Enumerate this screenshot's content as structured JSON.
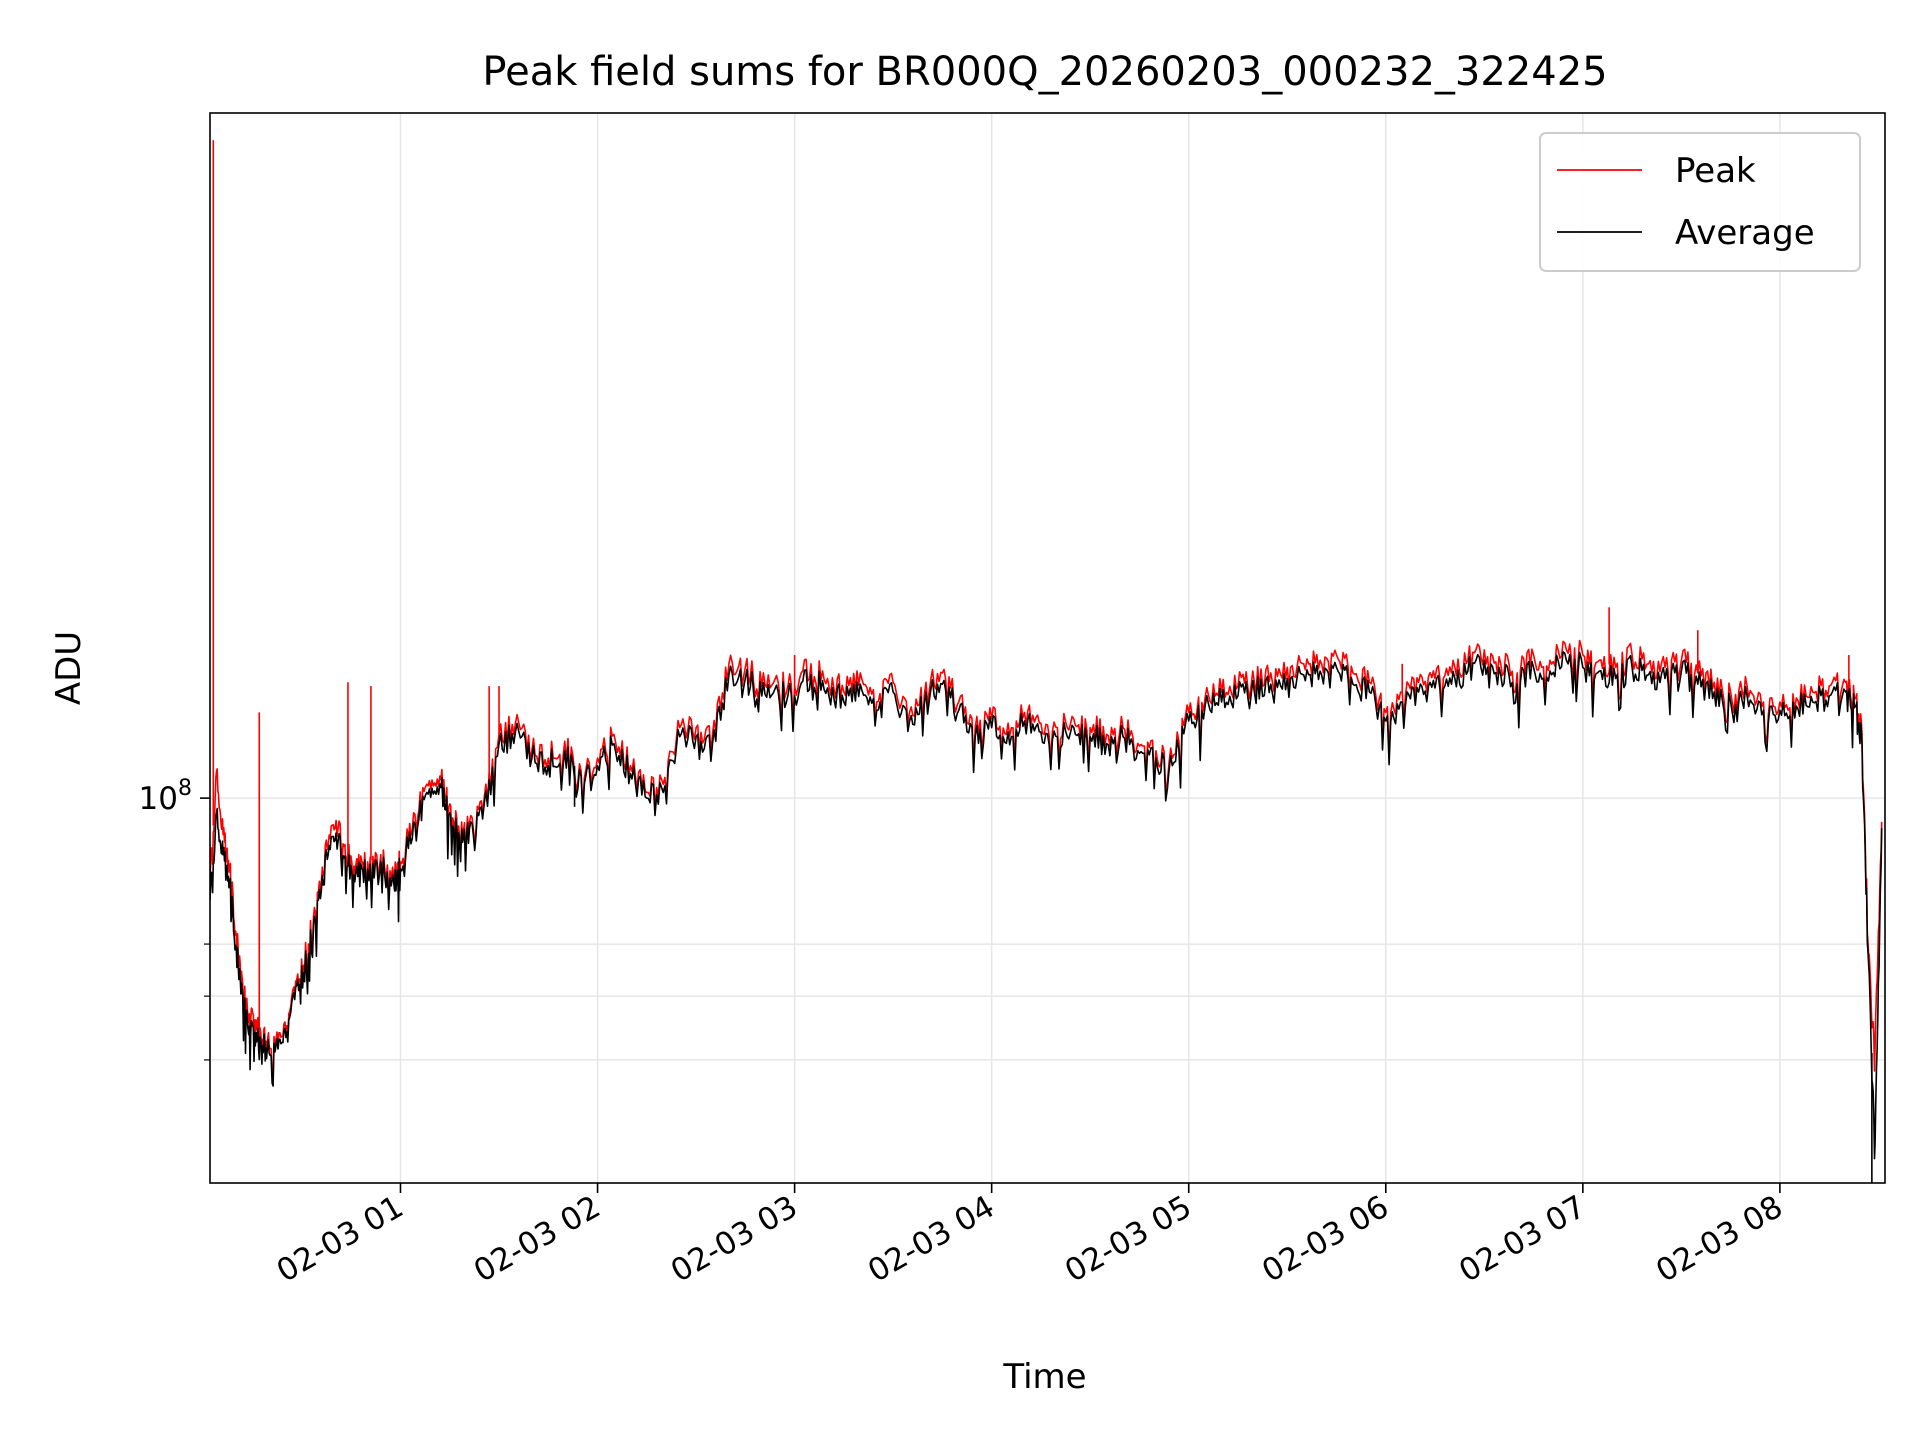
{
  "chart_data": {
    "type": "line",
    "title": "Peak field sums for BR000Q_20260203_000232_322425",
    "xlabel": "Time",
    "ylabel": "ADU",
    "x_axis_type": "time",
    "xlim": [
      "2026-02-03 00:02",
      "2026-02-03 08:32"
    ],
    "y_scale": "log",
    "ylim": [
      26000000,
      1100000000
    ],
    "grid": true,
    "legend_position": "top-right",
    "x_ticks": [
      {
        "time": "2026-02-03 01:00",
        "label": "02-03 01"
      },
      {
        "time": "2026-02-03 02:00",
        "label": "02-03 02"
      },
      {
        "time": "2026-02-03 03:00",
        "label": "02-03 03"
      },
      {
        "time": "2026-02-03 04:00",
        "label": "02-03 04"
      },
      {
        "time": "2026-02-03 05:00",
        "label": "02-03 05"
      },
      {
        "time": "2026-02-03 06:00",
        "label": "02-03 06"
      },
      {
        "time": "2026-02-03 07:00",
        "label": "02-03 07"
      },
      {
        "time": "2026-02-03 08:00",
        "label": "02-03 08"
      }
    ],
    "y_major_ticks": [
      {
        "value": 100000000,
        "base": "10",
        "exp": "8"
      }
    ],
    "y_minor_ticks": [
      40000000,
      50000000,
      60000000
    ],
    "x": [
      "2026-02-03 00:02",
      "2026-02-03 00:04",
      "2026-02-03 00:06",
      "2026-02-03 00:08",
      "2026-02-03 00:10",
      "2026-02-03 00:12",
      "2026-02-03 00:14",
      "2026-02-03 00:16",
      "2026-02-03 00:18",
      "2026-02-03 00:20",
      "2026-02-03 00:23",
      "2026-02-03 00:26",
      "2026-02-03 00:29",
      "2026-02-03 00:32",
      "2026-02-03 00:35",
      "2026-02-03 00:38",
      "2026-02-03 00:41",
      "2026-02-03 00:44",
      "2026-02-03 00:47",
      "2026-02-03 00:50",
      "2026-02-03 00:54",
      "2026-02-03 00:58",
      "2026-02-03 01:00",
      "2026-02-03 01:04",
      "2026-02-03 01:08",
      "2026-02-03 01:12",
      "2026-02-03 01:15",
      "2026-02-03 01:18",
      "2026-02-03 01:21",
      "2026-02-03 01:25",
      "2026-02-03 01:30",
      "2026-02-03 01:35",
      "2026-02-03 01:40",
      "2026-02-03 01:45",
      "2026-02-03 01:50",
      "2026-02-03 01:55",
      "2026-02-03 02:00",
      "2026-02-03 02:05",
      "2026-02-03 02:10",
      "2026-02-03 02:15",
      "2026-02-03 02:20",
      "2026-02-03 02:25",
      "2026-02-03 02:30",
      "2026-02-03 02:35",
      "2026-02-03 02:40",
      "2026-02-03 02:45",
      "2026-02-03 02:50",
      "2026-02-03 02:55",
      "2026-02-03 03:00",
      "2026-02-03 03:05",
      "2026-02-03 03:10",
      "2026-02-03 03:15",
      "2026-02-03 03:20",
      "2026-02-03 03:25",
      "2026-02-03 03:30",
      "2026-02-03 03:35",
      "2026-02-03 03:40",
      "2026-02-03 03:45",
      "2026-02-03 03:50",
      "2026-02-03 03:55",
      "2026-02-03 04:00",
      "2026-02-03 04:05",
      "2026-02-03 04:10",
      "2026-02-03 04:15",
      "2026-02-03 04:20",
      "2026-02-03 04:25",
      "2026-02-03 04:30",
      "2026-02-03 04:35",
      "2026-02-03 04:40",
      "2026-02-03 04:45",
      "2026-02-03 04:50",
      "2026-02-03 04:55",
      "2026-02-03 05:00",
      "2026-02-03 05:05",
      "2026-02-03 05:10",
      "2026-02-03 05:15",
      "2026-02-03 05:20",
      "2026-02-03 05:25",
      "2026-02-03 05:30",
      "2026-02-03 05:35",
      "2026-02-03 05:40",
      "2026-02-03 05:45",
      "2026-02-03 05:50",
      "2026-02-03 05:55",
      "2026-02-03 06:00",
      "2026-02-03 06:05",
      "2026-02-03 06:10",
      "2026-02-03 06:15",
      "2026-02-03 06:20",
      "2026-02-03 06:25",
      "2026-02-03 06:30",
      "2026-02-03 06:35",
      "2026-02-03 06:40",
      "2026-02-03 06:45",
      "2026-02-03 06:50",
      "2026-02-03 06:55",
      "2026-02-03 07:00",
      "2026-02-03 07:05",
      "2026-02-03 07:10",
      "2026-02-03 07:15",
      "2026-02-03 07:20",
      "2026-02-03 07:25",
      "2026-02-03 07:30",
      "2026-02-03 07:35",
      "2026-02-03 07:40",
      "2026-02-03 07:45",
      "2026-02-03 07:50",
      "2026-02-03 07:55",
      "2026-02-03 08:00",
      "2026-02-03 08:05",
      "2026-02-03 08:10",
      "2026-02-03 08:15",
      "2026-02-03 08:20",
      "2026-02-03 08:23",
      "2026-02-03 08:25",
      "2026-02-03 08:27",
      "2026-02-03 08:29",
      "2026-02-03 08:31"
    ],
    "series": [
      {
        "name": "Peak",
        "color": "#ff0000",
        "values": [
          75000000,
          110000000,
          88000000,
          78000000,
          62000000,
          52000000,
          47000000,
          46000000,
          43000000,
          42000000,
          44000000,
          47000000,
          52000000,
          60000000,
          72000000,
          85000000,
          90000000,
          82000000,
          78000000,
          80000000,
          82000000,
          76000000,
          80000000,
          95000000,
          105000000,
          108000000,
          98000000,
          87000000,
          92000000,
          95000000,
          125000000,
          130000000,
          118000000,
          115000000,
          122000000,
          110000000,
          115000000,
          125000000,
          112000000,
          102000000,
          105000000,
          128000000,
          128000000,
          125000000,
          160000000,
          158000000,
          148000000,
          150000000,
          148000000,
          160000000,
          152000000,
          145000000,
          155000000,
          140000000,
          150000000,
          135000000,
          150000000,
          155000000,
          140000000,
          128000000,
          132000000,
          130000000,
          135000000,
          130000000,
          128000000,
          132000000,
          128000000,
          125000000,
          128000000,
          120000000,
          118000000,
          115000000,
          135000000,
          142000000,
          145000000,
          148000000,
          150000000,
          155000000,
          158000000,
          160000000,
          162000000,
          165000000,
          155000000,
          150000000,
          135000000,
          145000000,
          150000000,
          152000000,
          155000000,
          162000000,
          168000000,
          160000000,
          155000000,
          165000000,
          162000000,
          168000000,
          165000000,
          162000000,
          158000000,
          165000000,
          160000000,
          158000000,
          162000000,
          155000000,
          150000000,
          145000000,
          148000000,
          140000000,
          140000000,
          142000000,
          145000000,
          148000000,
          150000000,
          142000000,
          125000000,
          58000000,
          42000000,
          92000000
        ],
        "spikes": [
          {
            "x": "2026-02-03 00:03",
            "value": 1000000000
          },
          {
            "x": "2026-02-03 00:17",
            "value": 135000000
          },
          {
            "x": "2026-02-03 00:44",
            "value": 150000000
          },
          {
            "x": "2026-02-03 00:51",
            "value": 148000000
          },
          {
            "x": "2026-02-03 01:27",
            "value": 148000000
          },
          {
            "x": "2026-02-03 01:30",
            "value": 148000000
          },
          {
            "x": "2026-02-03 03:00",
            "value": 165000000
          },
          {
            "x": "2026-02-03 06:05",
            "value": 160000000
          },
          {
            "x": "2026-02-03 07:08",
            "value": 195000000
          },
          {
            "x": "2026-02-03 07:35",
            "value": 180000000
          },
          {
            "x": "2026-02-03 08:21",
            "value": 165000000
          }
        ]
      },
      {
        "name": "Average",
        "color": "#000000",
        "values": [
          70000000,
          95000000,
          82000000,
          74000000,
          59000000,
          50000000,
          45000000,
          44000000,
          42000000,
          41000000,
          43000000,
          46000000,
          51000000,
          58000000,
          70000000,
          82000000,
          86000000,
          79000000,
          76000000,
          78000000,
          80000000,
          74000000,
          78000000,
          92000000,
          102000000,
          105000000,
          95000000,
          85000000,
          90000000,
          93000000,
          121000000,
          126000000,
          115000000,
          112000000,
          118000000,
          108000000,
          112000000,
          121000000,
          109000000,
          100000000,
          102000000,
          124000000,
          124000000,
          121000000,
          154000000,
          152000000,
          143000000,
          145000000,
          143000000,
          154000000,
          147000000,
          140000000,
          149000000,
          136000000,
          145000000,
          131000000,
          145000000,
          149000000,
          136000000,
          124000000,
          128000000,
          126000000,
          131000000,
          126000000,
          124000000,
          128000000,
          124000000,
          121000000,
          124000000,
          117000000,
          115000000,
          112000000,
          131000000,
          138000000,
          140000000,
          143000000,
          145000000,
          149000000,
          152000000,
          154000000,
          156000000,
          158000000,
          149000000,
          145000000,
          131000000,
          140000000,
          145000000,
          147000000,
          149000000,
          156000000,
          162000000,
          154000000,
          149000000,
          158000000,
          156000000,
          162000000,
          158000000,
          156000000,
          152000000,
          158000000,
          154000000,
          152000000,
          156000000,
          149000000,
          145000000,
          140000000,
          143000000,
          136000000,
          136000000,
          138000000,
          140000000,
          143000000,
          145000000,
          138000000,
          121000000,
          56000000,
          30000000,
          90000000
        ],
        "spikes": [
          {
            "x": "2026-02-03 01:53",
            "value": 97000000
          },
          {
            "x": "2026-02-03 08:28",
            "value": 26000000
          }
        ]
      }
    ]
  }
}
